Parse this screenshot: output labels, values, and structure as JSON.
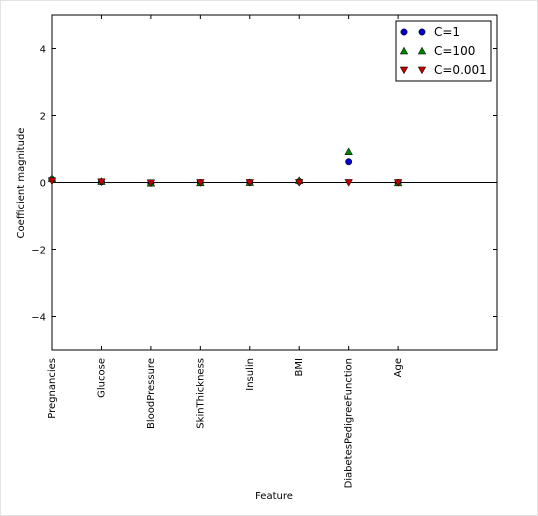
{
  "chart_data": {
    "type": "scatter",
    "categories": [
      "Pregnancies",
      "Glucose",
      "BloodPressure",
      "SkinThickness",
      "Insulin",
      "BMI",
      "DiabetesPedigreeFunction",
      "Age"
    ],
    "xlabel": "Feature",
    "ylabel": "Coefficient magnitude",
    "ylim": [
      -5,
      5
    ],
    "xlim": [
      0,
      9
    ],
    "yticks": [
      "−4",
      "−2",
      "0",
      "2",
      "4"
    ],
    "ytick_values": [
      -4,
      -2,
      0,
      2,
      4
    ],
    "hline": 0,
    "legend_position": "top-right",
    "grid": false,
    "series": [
      {
        "name": "C=1",
        "marker": "circle",
        "color": "#0000bf",
        "values": [
          0.09,
          0.02,
          -0.02,
          0.0,
          0.0,
          0.03,
          0.62,
          0.0
        ]
      },
      {
        "name": "C=100",
        "marker": "triangle-up",
        "color": "#007f00",
        "values": [
          0.12,
          0.03,
          -0.02,
          -0.01,
          0.0,
          0.06,
          0.92,
          -0.01
        ]
      },
      {
        "name": "C=0.001",
        "marker": "triangle-down",
        "color": "#bf0000",
        "values": [
          0.05,
          0.02,
          -0.01,
          0.0,
          0.0,
          0.0,
          0.0,
          0.0
        ]
      }
    ]
  }
}
